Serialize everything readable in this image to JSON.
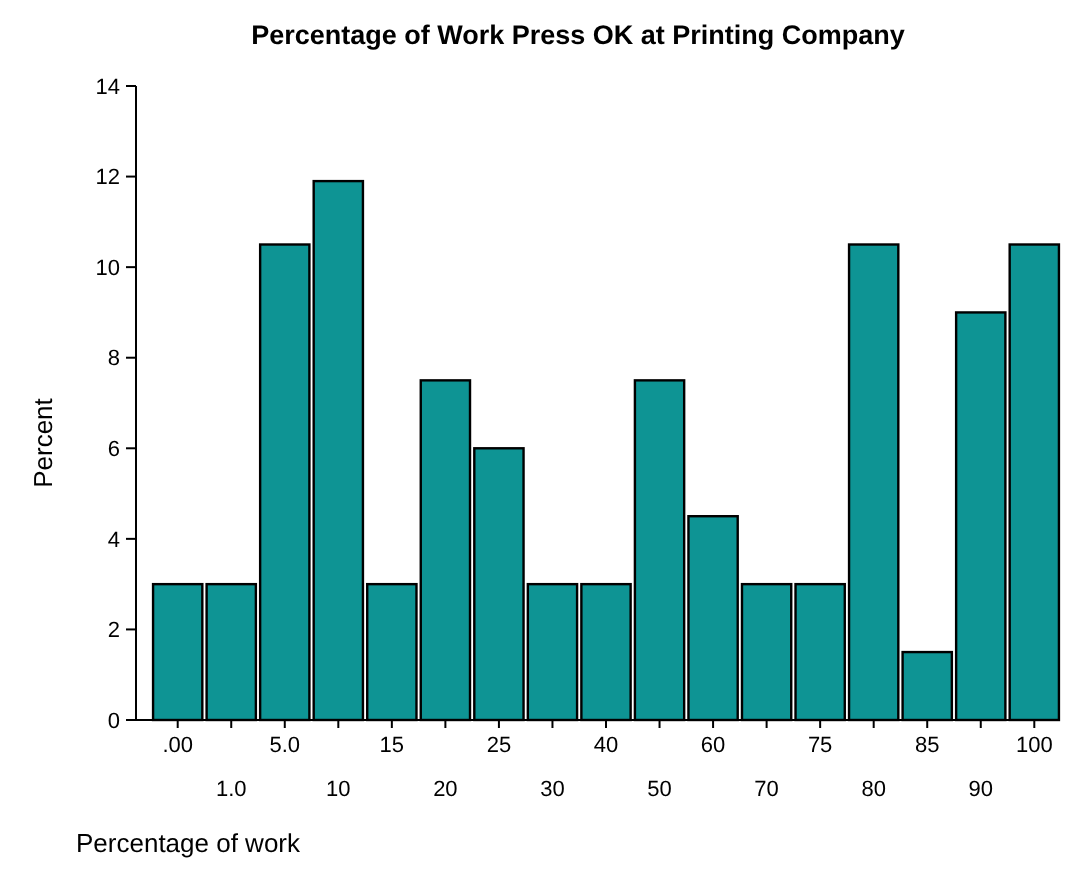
{
  "chart_data": {
    "type": "bar",
    "title": "Percentage of Work Press OK at Printing Company",
    "xlabel": "Percentage of work",
    "ylabel": "Percent",
    "categories": [
      ".00",
      "1.0",
      "5.0",
      "10",
      "15",
      "20",
      "25",
      "30",
      "40",
      "50",
      "60",
      "70",
      "75",
      "80",
      "85",
      "90",
      "100"
    ],
    "values": [
      3,
      3,
      10.5,
      11.9,
      3,
      7.5,
      6,
      3,
      3,
      7.5,
      4.5,
      3,
      3,
      10.5,
      1.5,
      9,
      10.5
    ],
    "color": "#0e9494",
    "ylim": [
      0,
      14
    ],
    "yticks": [
      0,
      2,
      4,
      6,
      8,
      10,
      12,
      14
    ],
    "grid": false
  }
}
